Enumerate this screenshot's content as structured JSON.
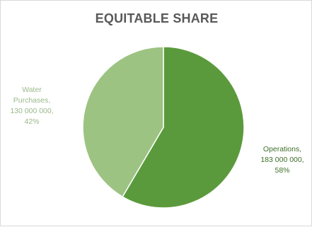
{
  "chart_data": {
    "type": "pie",
    "title": "EQUITABLE SHARE",
    "slices": [
      {
        "label": "Operations",
        "value": 183000000,
        "percent": 58,
        "label_lines": [
          "Operations,",
          "183 000 000,",
          "58%"
        ],
        "color": "#5b9a3c",
        "label_color": "#3f6f28"
      },
      {
        "label": "Water Purchases",
        "value": 130000000,
        "percent": 42,
        "label_lines": [
          "Water",
          "Purchases,",
          "130 000 000,",
          "42%"
        ],
        "color": "#9dc383",
        "label_color": "#9ab88a"
      }
    ],
    "start_angle_deg": 0,
    "direction": "clockwise",
    "grid": false,
    "legend": "none"
  }
}
